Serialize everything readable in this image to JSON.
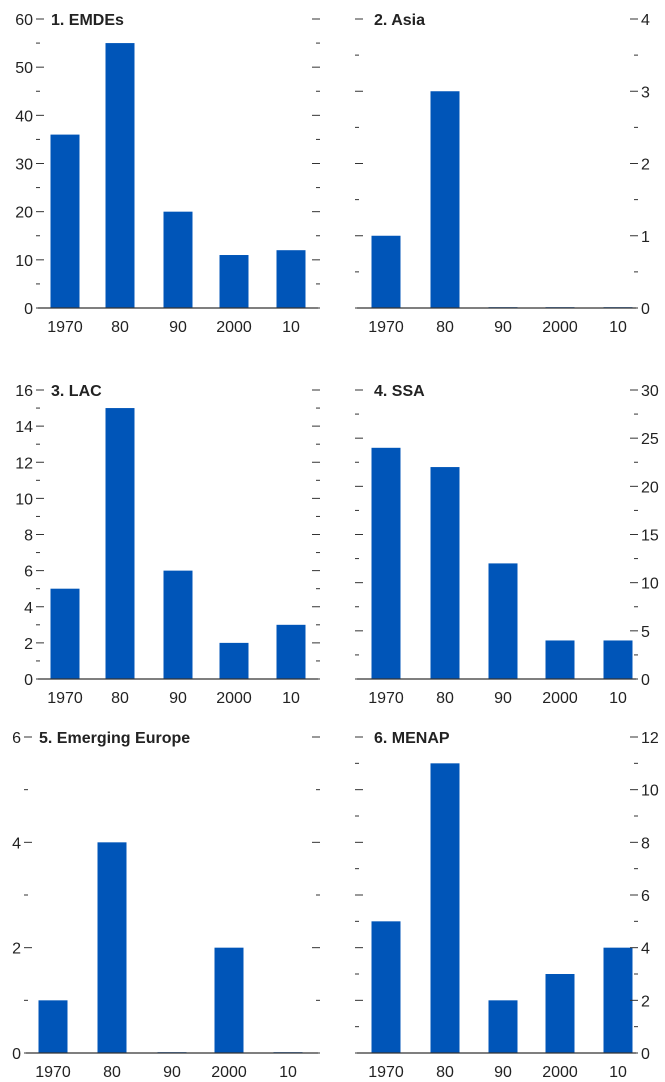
{
  "chart_data": [
    {
      "type": "bar",
      "title": "1. EMDEs",
      "categories": [
        "1970",
        "80",
        "90",
        "2000",
        "10"
      ],
      "values": [
        36,
        55,
        20,
        11,
        12
      ],
      "ylim": [
        0,
        60
      ],
      "yticks": [
        "0",
        "10",
        "20",
        "30",
        "40",
        "50",
        "60"
      ],
      "y_axis_side": "left",
      "color": "#0055b8"
    },
    {
      "type": "bar",
      "title": "2. Asia",
      "categories": [
        "1970",
        "80",
        "90",
        "2000",
        "10"
      ],
      "values": [
        1,
        3,
        0,
        0,
        0
      ],
      "ylim": [
        0,
        4
      ],
      "yticks": [
        "0",
        "1",
        "2",
        "3",
        "4"
      ],
      "y_axis_side": "right",
      "color": "#0055b8"
    },
    {
      "type": "bar",
      "title": "3. LAC",
      "categories": [
        "1970",
        "80",
        "90",
        "2000",
        "10"
      ],
      "values": [
        5,
        15,
        6,
        2,
        3
      ],
      "ylim": [
        0,
        16
      ],
      "yticks": [
        "0",
        "2",
        "4",
        "6",
        "8",
        "10",
        "12",
        "14",
        "16"
      ],
      "y_axis_side": "left",
      "color": "#0055b8"
    },
    {
      "type": "bar",
      "title": "4. SSA",
      "categories": [
        "1970",
        "80",
        "90",
        "2000",
        "10"
      ],
      "values": [
        24,
        22,
        12,
        4,
        4
      ],
      "ylim": [
        0,
        30
      ],
      "yticks": [
        "0",
        "5",
        "10",
        "15",
        "20",
        "25",
        "30"
      ],
      "y_axis_side": "right",
      "color": "#0055b8"
    },
    {
      "type": "bar",
      "title": "5. Emerging Europe",
      "categories": [
        "1970",
        "80",
        "90",
        "2000",
        "10"
      ],
      "values": [
        1,
        4,
        0,
        2,
        0
      ],
      "ylim": [
        0,
        6
      ],
      "yticks": [
        "0",
        "2",
        "4",
        "6"
      ],
      "y_axis_side": "left",
      "color": "#0055b8"
    },
    {
      "type": "bar",
      "title": "6. MENAP",
      "categories": [
        "1970",
        "80",
        "90",
        "2000",
        "10"
      ],
      "values": [
        5,
        11,
        2,
        3,
        4
      ],
      "ylim": [
        0,
        12
      ],
      "yticks": [
        "0",
        "2",
        "4",
        "6",
        "8",
        "10",
        "12"
      ],
      "y_axis_side": "right",
      "color": "#0055b8"
    }
  ]
}
